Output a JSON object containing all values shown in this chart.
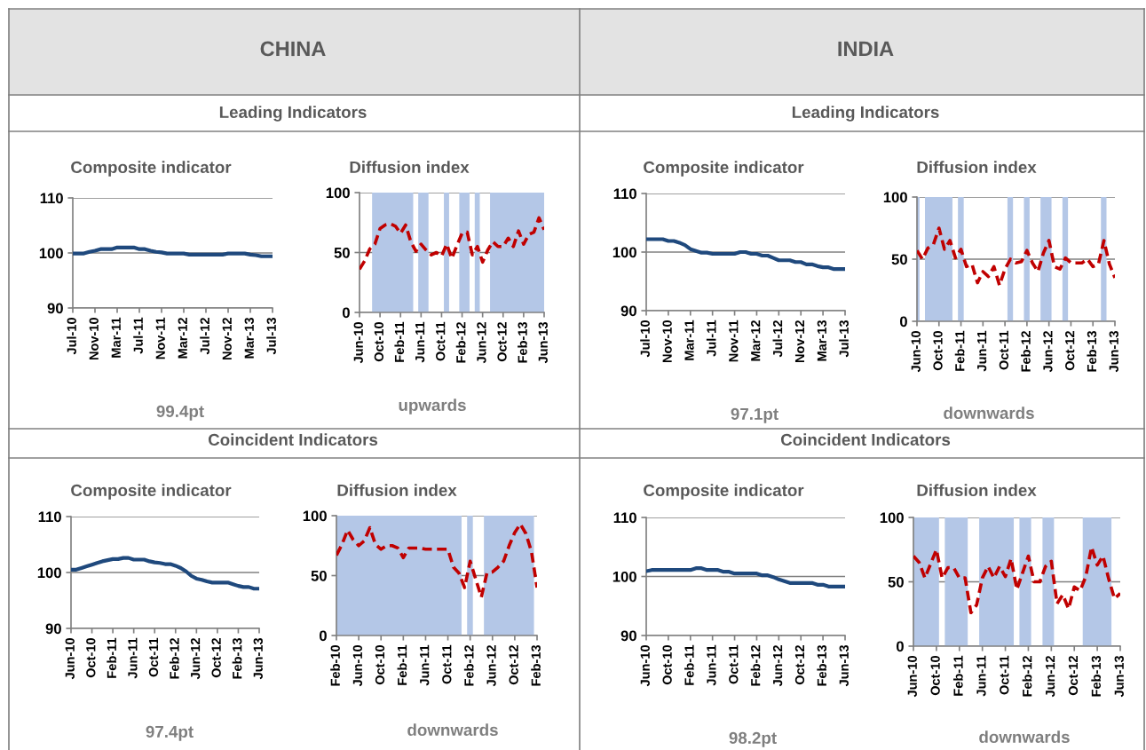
{
  "chart_data": [
    {
      "type": "line",
      "title": "Composite indicator",
      "annotations": [
        "CHINA",
        "Leading Indicators",
        "99.4pt"
      ],
      "x": [
        "2010-07",
        "2010-08",
        "2010-09",
        "2010-10",
        "2010-11",
        "2010-12",
        "2011-01",
        "2011-02",
        "2011-03",
        "2011-04",
        "2011-05",
        "2011-06",
        "2011-07",
        "2011-08",
        "2011-09",
        "2011-10",
        "2011-11",
        "2011-12",
        "2012-01",
        "2012-02",
        "2012-03",
        "2012-04",
        "2012-05",
        "2012-06",
        "2012-07",
        "2012-08",
        "2012-09",
        "2012-10",
        "2012-11",
        "2012-12",
        "2013-01",
        "2013-02",
        "2013-03",
        "2013-04",
        "2013-05",
        "2013-06",
        "2013-07"
      ],
      "series": [
        {
          "color": "#1f497d",
          "values": [
            99.9,
            99.9,
            99.9,
            100.2,
            100.4,
            100.7,
            100.7,
            100.7,
            101.0,
            101.0,
            101.0,
            101.0,
            100.7,
            100.7,
            100.4,
            100.2,
            100.1,
            99.9,
            99.9,
            99.9,
            99.9,
            99.7,
            99.7,
            99.7,
            99.7,
            99.7,
            99.7,
            99.7,
            99.9,
            99.9,
            99.9,
            99.9,
            99.7,
            99.6,
            99.4,
            99.4,
            99.4
          ]
        }
      ],
      "xlim": [
        "2010-07",
        "2013-07"
      ],
      "xticks": [
        {
          "value": "2010-07",
          "label": "Jul-10"
        },
        {
          "value": "2010-11",
          "label": "Nov-10"
        },
        {
          "value": "2011-03",
          "label": "Mar-11"
        },
        {
          "value": "2011-07",
          "label": "Jul-11"
        },
        {
          "value": "2011-11",
          "label": "Nov-11"
        },
        {
          "value": "2012-03",
          "label": "Mar-12"
        },
        {
          "value": "2012-07",
          "label": "Jul-12"
        },
        {
          "value": "2012-11",
          "label": "Nov-12"
        },
        {
          "value": "2013-03",
          "label": "Mar-13"
        },
        {
          "value": "2013-07",
          "label": "Jul-13"
        }
      ],
      "ylim": [
        90,
        110
      ],
      "yticks": [
        90,
        100,
        110
      ],
      "grid": "y",
      "line_style": "solid"
    },
    {
      "type": "line",
      "title": "Diffusion index",
      "annotations": [
        "upwards"
      ],
      "x": [
        "2010-06",
        "2010-07",
        "2010-08",
        "2010-09",
        "2010-10",
        "2010-11",
        "2010-12",
        "2011-01",
        "2011-02",
        "2011-03",
        "2011-04",
        "2011-05",
        "2011-06",
        "2011-07",
        "2011-08",
        "2011-09",
        "2011-10",
        "2011-11",
        "2011-12",
        "2012-01",
        "2012-02",
        "2012-03",
        "2012-04",
        "2012-05",
        "2012-06",
        "2012-07",
        "2012-08",
        "2012-09",
        "2012-10",
        "2012-11",
        "2012-12",
        "2013-01",
        "2013-02",
        "2013-03",
        "2013-04",
        "2013-05",
        "2013-06"
      ],
      "series": [
        {
          "color": "#c00000",
          "line_style": "dashed",
          "values": [
            36,
            43,
            53,
            57,
            70,
            73,
            74,
            72,
            66,
            73,
            59,
            51,
            57,
            52,
            48,
            50,
            47,
            57,
            45,
            56,
            66,
            67,
            48,
            55,
            42,
            52,
            59,
            55,
            55,
            62,
            55,
            68,
            57,
            65,
            67,
            79,
            69
          ]
        }
      ],
      "bands": [
        {
          "axis": "x",
          "from": "2010-08-15",
          "to": "2011-04-15",
          "color": "#b4c7e7"
        },
        {
          "axis": "x",
          "from": "2011-05-15",
          "to": "2011-07-15",
          "color": "#b4c7e7"
        },
        {
          "axis": "x",
          "from": "2011-10-15",
          "to": "2011-11-15",
          "color": "#b4c7e7"
        },
        {
          "axis": "x",
          "from": "2012-01-15",
          "to": "2012-03-15",
          "color": "#b4c7e7"
        },
        {
          "axis": "x",
          "from": "2012-04-15",
          "to": "2012-05-15",
          "color": "#b4c7e7"
        },
        {
          "axis": "x",
          "from": "2012-07-15",
          "to": "2013-06",
          "color": "#b4c7e7"
        }
      ],
      "xlim": [
        "2010-06",
        "2013-06"
      ],
      "xticks": [
        {
          "value": "2010-06",
          "label": "Jun-10"
        },
        {
          "value": "2010-10",
          "label": "Oct-10"
        },
        {
          "value": "2011-02",
          "label": "Feb-11"
        },
        {
          "value": "2011-06",
          "label": "Jun-11"
        },
        {
          "value": "2011-10",
          "label": "Oct-11"
        },
        {
          "value": "2012-02",
          "label": "Feb-12"
        },
        {
          "value": "2012-06",
          "label": "Jun-12"
        },
        {
          "value": "2012-10",
          "label": "Oct-12"
        },
        {
          "value": "2013-02",
          "label": "Feb-13"
        },
        {
          "value": "2013-06",
          "label": "Jun-13"
        }
      ],
      "ylim": [
        0,
        100
      ],
      "yticks": [
        0,
        50,
        100
      ],
      "grid": "y"
    },
    {
      "type": "line",
      "title": "Composite indicator",
      "annotations": [
        "INDIA",
        "Leading Indicators",
        "97.1pt"
      ],
      "x": [
        "2010-07",
        "2010-08",
        "2010-09",
        "2010-10",
        "2010-11",
        "2010-12",
        "2011-01",
        "2011-02",
        "2011-03",
        "2011-04",
        "2011-05",
        "2011-06",
        "2011-07",
        "2011-08",
        "2011-09",
        "2011-10",
        "2011-11",
        "2011-12",
        "2012-01",
        "2012-02",
        "2012-03",
        "2012-04",
        "2012-05",
        "2012-06",
        "2012-07",
        "2012-08",
        "2012-09",
        "2012-10",
        "2012-11",
        "2012-12",
        "2013-01",
        "2013-02",
        "2013-03",
        "2013-04",
        "2013-05",
        "2013-06",
        "2013-07"
      ],
      "series": [
        {
          "color": "#1f497d",
          "values": [
            102.2,
            102.2,
            102.2,
            102.2,
            101.9,
            101.9,
            101.6,
            101.2,
            100.5,
            100.2,
            99.9,
            99.9,
            99.7,
            99.7,
            99.7,
            99.7,
            99.7,
            100.0,
            100.0,
            99.7,
            99.7,
            99.4,
            99.4,
            99.0,
            98.6,
            98.6,
            98.6,
            98.3,
            98.3,
            97.9,
            97.9,
            97.6,
            97.4,
            97.4,
            97.1,
            97.1,
            97.1
          ]
        }
      ],
      "xlim": [
        "2010-07",
        "2013-07"
      ],
      "xticks": [
        {
          "value": "2010-07",
          "label": "Jul-10"
        },
        {
          "value": "2010-11",
          "label": "Nov-10"
        },
        {
          "value": "2011-03",
          "label": "Mar-11"
        },
        {
          "value": "2011-07",
          "label": "Jul-11"
        },
        {
          "value": "2011-11",
          "label": "Nov-11"
        },
        {
          "value": "2012-03",
          "label": "Mar-12"
        },
        {
          "value": "2012-07",
          "label": "Jul-12"
        },
        {
          "value": "2012-11",
          "label": "Nov-12"
        },
        {
          "value": "2013-03",
          "label": "Mar-13"
        },
        {
          "value": "2013-07",
          "label": "Jul-13"
        }
      ],
      "ylim": [
        90,
        110
      ],
      "yticks": [
        90,
        100,
        110
      ],
      "grid": "y",
      "line_style": "solid"
    },
    {
      "type": "line",
      "title": "Diffusion index",
      "annotations": [
        "downwards"
      ],
      "x": [
        "2010-06",
        "2010-07",
        "2010-08",
        "2010-09",
        "2010-10",
        "2010-11",
        "2010-12",
        "2011-01",
        "2011-02",
        "2011-03",
        "2011-04",
        "2011-05",
        "2011-06",
        "2011-07",
        "2011-08",
        "2011-09",
        "2011-10",
        "2011-11",
        "2011-12",
        "2012-01",
        "2012-02",
        "2012-03",
        "2012-04",
        "2012-05",
        "2012-06",
        "2012-07",
        "2012-08",
        "2012-09",
        "2012-10",
        "2012-11",
        "2012-12",
        "2013-01",
        "2013-02",
        "2013-03",
        "2013-04",
        "2013-05",
        "2013-06"
      ],
      "series": [
        {
          "color": "#c00000",
          "line_style": "dashed",
          "values": [
            57,
            50,
            59,
            62,
            75,
            58,
            65,
            51,
            58,
            44,
            46,
            31,
            40,
            36,
            44,
            29,
            42,
            50,
            47,
            48,
            57,
            47,
            40,
            55,
            65,
            44,
            42,
            51,
            47,
            47,
            47,
            50,
            44,
            46,
            65,
            46,
            35
          ]
        }
      ],
      "bands": [
        {
          "axis": "x",
          "from": "2010-06",
          "to": "2010-06-15",
          "color": "#b4c7e7"
        },
        {
          "axis": "x",
          "from": "2010-07-15",
          "to": "2010-12-15",
          "color": "#b4c7e7"
        },
        {
          "axis": "x",
          "from": "2011-01-15",
          "to": "2011-02-15",
          "color": "#b4c7e7"
        },
        {
          "axis": "x",
          "from": "2011-10-15",
          "to": "2011-11-15",
          "color": "#b4c7e7"
        },
        {
          "axis": "x",
          "from": "2012-01-15",
          "to": "2012-02-15",
          "color": "#b4c7e7"
        },
        {
          "axis": "x",
          "from": "2012-04-15",
          "to": "2012-06-15",
          "color": "#b4c7e7"
        },
        {
          "axis": "x",
          "from": "2012-08-15",
          "to": "2012-09-15",
          "color": "#b4c7e7"
        },
        {
          "axis": "x",
          "from": "2013-03-15",
          "to": "2013-04-15",
          "color": "#b4c7e7"
        }
      ],
      "xlim": [
        "2010-06",
        "2013-06"
      ],
      "xticks": [
        {
          "value": "2010-06",
          "label": "Jun-10"
        },
        {
          "value": "2010-10",
          "label": "Oct-10"
        },
        {
          "value": "2011-02",
          "label": "Feb-11"
        },
        {
          "value": "2011-06",
          "label": "Jun-11"
        },
        {
          "value": "2011-10",
          "label": "Oct-11"
        },
        {
          "value": "2012-02",
          "label": "Feb-12"
        },
        {
          "value": "2012-06",
          "label": "Jun-12"
        },
        {
          "value": "2012-10",
          "label": "Oct-12"
        },
        {
          "value": "2013-02",
          "label": "Feb-13"
        },
        {
          "value": "2013-06",
          "label": "Jun-13"
        }
      ],
      "ylim": [
        0,
        100
      ],
      "yticks": [
        0,
        50,
        100
      ],
      "grid": "y"
    },
    {
      "type": "line",
      "title": "Composite indicator",
      "annotations": [
        "Coincident Indicators",
        "97.4pt"
      ],
      "x": [
        "2010-06",
        "2010-07",
        "2010-08",
        "2010-09",
        "2010-10",
        "2010-11",
        "2010-12",
        "2011-01",
        "2011-02",
        "2011-03",
        "2011-04",
        "2011-05",
        "2011-06",
        "2011-07",
        "2011-08",
        "2011-09",
        "2011-10",
        "2011-11",
        "2011-12",
        "2012-01",
        "2012-02",
        "2012-03",
        "2012-04",
        "2012-05",
        "2012-06",
        "2012-07",
        "2012-08",
        "2012-09",
        "2012-10",
        "2012-11",
        "2012-12",
        "2013-01",
        "2013-02",
        "2013-03",
        "2013-04",
        "2013-05",
        "2013-06"
      ],
      "series": [
        {
          "color": "#1f497d",
          "values": [
            100.5,
            100.5,
            100.8,
            101.1,
            101.4,
            101.7,
            102.0,
            102.2,
            102.4,
            102.4,
            102.6,
            102.6,
            102.3,
            102.3,
            102.3,
            102.0,
            101.8,
            101.7,
            101.5,
            101.5,
            101.2,
            100.8,
            100.2,
            99.4,
            98.9,
            98.7,
            98.4,
            98.2,
            98.2,
            98.2,
            98.2,
            97.9,
            97.6,
            97.4,
            97.4,
            97.1,
            97.1
          ]
        }
      ],
      "xlim": [
        "2010-06",
        "2013-06"
      ],
      "xticks": [
        {
          "value": "2010-06",
          "label": "Jun-10"
        },
        {
          "value": "2010-10",
          "label": "Oct-10"
        },
        {
          "value": "2011-02",
          "label": "Feb-11"
        },
        {
          "value": "2011-06",
          "label": "Jun-11"
        },
        {
          "value": "2011-10",
          "label": "Oct-11"
        },
        {
          "value": "2012-02",
          "label": "Feb-12"
        },
        {
          "value": "2012-06",
          "label": "Jun-12"
        },
        {
          "value": "2012-10",
          "label": "Oct-12"
        },
        {
          "value": "2013-02",
          "label": "Feb-13"
        },
        {
          "value": "2013-06",
          "label": "Jun-13"
        }
      ],
      "ylim": [
        90,
        110
      ],
      "yticks": [
        90,
        100,
        110
      ],
      "grid": "y",
      "line_style": "solid"
    },
    {
      "type": "line",
      "title": "Diffusion index",
      "annotations": [
        "downwards"
      ],
      "x": [
        "2010-02",
        "2010-03",
        "2010-04",
        "2010-05",
        "2010-06",
        "2010-07",
        "2010-08",
        "2010-09",
        "2010-10",
        "2010-11",
        "2010-12",
        "2011-01",
        "2011-02",
        "2011-03",
        "2011-04",
        "2011-05",
        "2011-06",
        "2011-07",
        "2011-08",
        "2011-09",
        "2011-10",
        "2011-11",
        "2011-12",
        "2012-01",
        "2012-02",
        "2012-03",
        "2012-04",
        "2012-05",
        "2012-06",
        "2012-07",
        "2012-08",
        "2012-09",
        "2012-10",
        "2012-11",
        "2012-12",
        "2013-01",
        "2013-02"
      ],
      "series": [
        {
          "color": "#c00000",
          "line_style": "dashed",
          "values": [
            67,
            76,
            88,
            80,
            75,
            79,
            90,
            76,
            72,
            75,
            75,
            73,
            65,
            73,
            73,
            73,
            72,
            72,
            72,
            72,
            72,
            57,
            52,
            40,
            62,
            47,
            32,
            52,
            53,
            57,
            62,
            75,
            86,
            93,
            85,
            70,
            40
          ]
        }
      ],
      "bands": [
        {
          "axis": "x",
          "from": "2010-02",
          "to": "2011-12-15",
          "color": "#b4c7e7"
        },
        {
          "axis": "x",
          "from": "2012-01-15",
          "to": "2012-02-15",
          "color": "#b4c7e7"
        },
        {
          "axis": "x",
          "from": "2012-04-15",
          "to": "2013-01-15",
          "color": "#b4c7e7"
        }
      ],
      "xlim": [
        "2010-02",
        "2013-02"
      ],
      "xticks": [
        {
          "value": "2010-02",
          "label": "Feb-10"
        },
        {
          "value": "2010-06",
          "label": "Jun-10"
        },
        {
          "value": "2010-10",
          "label": "Oct-10"
        },
        {
          "value": "2011-02",
          "label": "Feb-11"
        },
        {
          "value": "2011-06",
          "label": "Jun-11"
        },
        {
          "value": "2011-10",
          "label": "Oct-11"
        },
        {
          "value": "2012-02",
          "label": "Feb-12"
        },
        {
          "value": "2012-06",
          "label": "Jun-12"
        },
        {
          "value": "2012-10",
          "label": "Oct-12"
        },
        {
          "value": "2013-02",
          "label": "Feb-13"
        }
      ],
      "ylim": [
        0,
        100
      ],
      "yticks": [
        0,
        50,
        100
      ],
      "grid": "y"
    },
    {
      "type": "line",
      "title": "Composite indicator",
      "annotations": [
        "Coincident Indicators",
        "98.2pt"
      ],
      "x": [
        "2010-06",
        "2010-07",
        "2010-08",
        "2010-09",
        "2010-10",
        "2010-11",
        "2010-12",
        "2011-01",
        "2011-02",
        "2011-03",
        "2011-04",
        "2011-05",
        "2011-06",
        "2011-07",
        "2011-08",
        "2011-09",
        "2011-10",
        "2011-11",
        "2011-12",
        "2012-01",
        "2012-02",
        "2012-03",
        "2012-04",
        "2012-05",
        "2012-06",
        "2012-07",
        "2012-08",
        "2012-09",
        "2012-10",
        "2012-11",
        "2012-12",
        "2013-01",
        "2013-02",
        "2013-03",
        "2013-04",
        "2013-05",
        "2013-06"
      ],
      "series": [
        {
          "color": "#1f497d",
          "values": [
            100.9,
            101.1,
            101.1,
            101.1,
            101.1,
            101.1,
            101.1,
            101.1,
            101.1,
            101.4,
            101.4,
            101.1,
            101.1,
            101.1,
            100.8,
            100.8,
            100.5,
            100.5,
            100.5,
            100.5,
            100.5,
            100.2,
            100.2,
            99.9,
            99.5,
            99.2,
            98.9,
            98.9,
            98.9,
            98.9,
            98.9,
            98.6,
            98.6,
            98.3,
            98.3,
            98.3,
            98.3
          ]
        }
      ],
      "xlim": [
        "2010-06",
        "2013-06"
      ],
      "xticks": [
        {
          "value": "2010-06",
          "label": "Jun-10"
        },
        {
          "value": "2010-10",
          "label": "Oct-10"
        },
        {
          "value": "2011-02",
          "label": "Feb-11"
        },
        {
          "value": "2011-06",
          "label": "Jun-11"
        },
        {
          "value": "2011-10",
          "label": "Oct-11"
        },
        {
          "value": "2012-02",
          "label": "Feb-12"
        },
        {
          "value": "2012-06",
          "label": "Jun-12"
        },
        {
          "value": "2012-10",
          "label": "Oct-12"
        },
        {
          "value": "2013-02",
          "label": "Feb-13"
        },
        {
          "value": "2013-06",
          "label": "Jun-13"
        }
      ],
      "ylim": [
        90,
        110
      ],
      "yticks": [
        90,
        100,
        110
      ],
      "grid": "y",
      "line_style": "solid"
    },
    {
      "type": "line",
      "title": "Diffusion index",
      "annotations": [
        "downwards"
      ],
      "x": [
        "2010-06",
        "2010-07",
        "2010-08",
        "2010-09",
        "2010-10",
        "2010-11",
        "2010-12",
        "2011-01",
        "2011-02",
        "2011-03",
        "2011-04",
        "2011-05",
        "2011-06",
        "2011-07",
        "2011-08",
        "2011-09",
        "2011-10",
        "2011-11",
        "2011-12",
        "2012-01",
        "2012-02",
        "2012-03",
        "2012-04",
        "2012-05",
        "2012-06",
        "2012-07",
        "2012-08",
        "2012-09",
        "2012-10",
        "2012-11",
        "2012-12",
        "2013-01",
        "2013-02",
        "2013-03",
        "2013-04",
        "2013-05",
        "2013-06"
      ],
      "series": [
        {
          "color": "#c00000",
          "line_style": "dashed",
          "values": [
            70,
            65,
            53,
            64,
            75,
            53,
            61,
            61,
            53,
            53,
            26,
            32,
            53,
            62,
            53,
            62,
            54,
            68,
            44,
            57,
            70,
            50,
            50,
            62,
            66,
            33,
            40,
            29,
            46,
            43,
            54,
            77,
            63,
            70,
            52,
            37,
            41
          ]
        }
      ],
      "bands": [
        {
          "axis": "x",
          "from": "2010-06",
          "to": "2010-10-15",
          "color": "#b4c7e7"
        },
        {
          "axis": "x",
          "from": "2010-11-15",
          "to": "2011-03-15",
          "color": "#b4c7e7"
        },
        {
          "axis": "x",
          "from": "2011-05-15",
          "to": "2011-11-15",
          "color": "#b4c7e7"
        },
        {
          "axis": "x",
          "from": "2011-12-15",
          "to": "2012-02-15",
          "color": "#b4c7e7"
        },
        {
          "axis": "x",
          "from": "2012-04-15",
          "to": "2012-06-15",
          "color": "#b4c7e7"
        },
        {
          "axis": "x",
          "from": "2012-11-15",
          "to": "2013-04-15",
          "color": "#b4c7e7"
        }
      ],
      "xlim": [
        "2010-06",
        "2013-06"
      ],
      "xticks": [
        {
          "value": "2010-06",
          "label": "Jun-10"
        },
        {
          "value": "2010-10",
          "label": "Oct-10"
        },
        {
          "value": "2011-02",
          "label": "Feb-11"
        },
        {
          "value": "2011-06",
          "label": "Jun-11"
        },
        {
          "value": "2011-10",
          "label": "Oct-11"
        },
        {
          "value": "2012-02",
          "label": "Feb-12"
        },
        {
          "value": "2012-06",
          "label": "Jun-12"
        },
        {
          "value": "2012-10",
          "label": "Oct-12"
        },
        {
          "value": "2013-02",
          "label": "Feb-13"
        },
        {
          "value": "2013-06",
          "label": "Jun-13"
        }
      ],
      "ylim": [
        0,
        100
      ],
      "yticks": [
        0,
        50,
        100
      ],
      "grid": "y"
    }
  ]
}
